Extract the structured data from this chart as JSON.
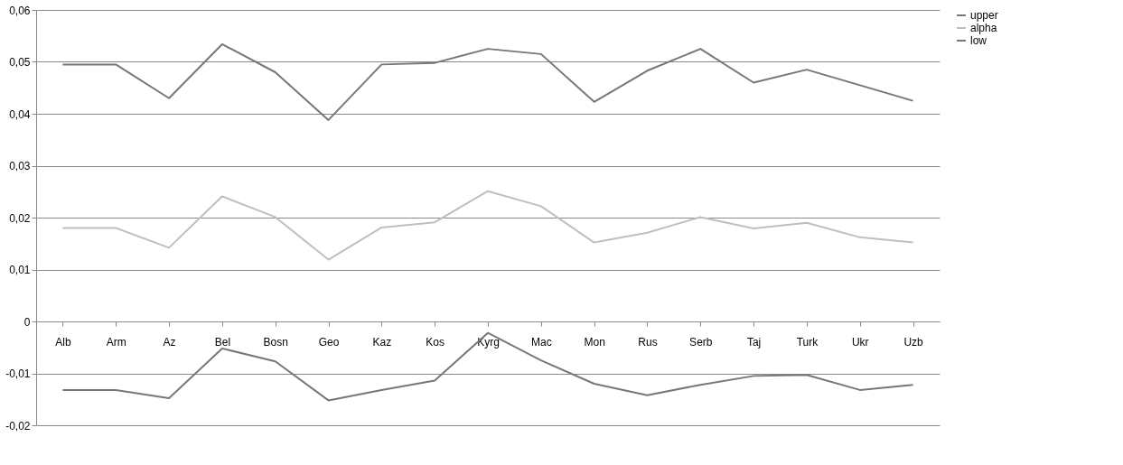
{
  "chart_data": {
    "type": "line",
    "categories": [
      "Alb",
      "Arm",
      "Az",
      "Bel",
      "Bosn",
      "Geo",
      "Kaz",
      "Kos",
      "Kyrg",
      "Mac",
      "Mon",
      "Rus",
      "Serb",
      "Taj",
      "Turk",
      "Ukr",
      "Uzb"
    ],
    "series": [
      {
        "name": "upper",
        "color": "#777777",
        "values": [
          0.0495,
          0.0495,
          0.043,
          0.0534,
          0.048,
          0.0388,
          0.0495,
          0.0498,
          0.0525,
          0.0515,
          0.0423,
          0.0483,
          0.0525,
          0.046,
          0.0485,
          0.0455,
          0.0425
        ]
      },
      {
        "name": "alpha",
        "color": "#bfbfbf",
        "values": [
          0.018,
          0.018,
          0.0142,
          0.0241,
          0.0201,
          0.0119,
          0.0181,
          0.0191,
          0.0251,
          0.0222,
          0.0152,
          0.0171,
          0.0201,
          0.0179,
          0.019,
          0.0162,
          0.0152
        ]
      },
      {
        "name": "low",
        "color": "#777777",
        "values": [
          -0.0132,
          -0.0132,
          -0.0148,
          -0.0052,
          -0.0077,
          -0.0152,
          -0.0132,
          -0.0114,
          -0.0022,
          -0.0075,
          -0.012,
          -0.0142,
          -0.0122,
          -0.0105,
          -0.0103,
          -0.0132,
          -0.0122
        ]
      }
    ],
    "ylim": [
      -0.02,
      0.06
    ],
    "yticks": [
      {
        "value": -0.02,
        "label": "-0,02"
      },
      {
        "value": -0.01,
        "label": "-0,01"
      },
      {
        "value": 0,
        "label": "0"
      },
      {
        "value": 0.01,
        "label": "0,01"
      },
      {
        "value": 0.02,
        "label": "0,02"
      },
      {
        "value": 0.03,
        "label": "0,03"
      },
      {
        "value": 0.04,
        "label": "0,04"
      },
      {
        "value": 0.05,
        "label": "0,05"
      },
      {
        "value": 0.06,
        "label": "0,06"
      }
    ],
    "grid": "y",
    "legend": "right",
    "marker": "none",
    "line_style": "solid"
  }
}
